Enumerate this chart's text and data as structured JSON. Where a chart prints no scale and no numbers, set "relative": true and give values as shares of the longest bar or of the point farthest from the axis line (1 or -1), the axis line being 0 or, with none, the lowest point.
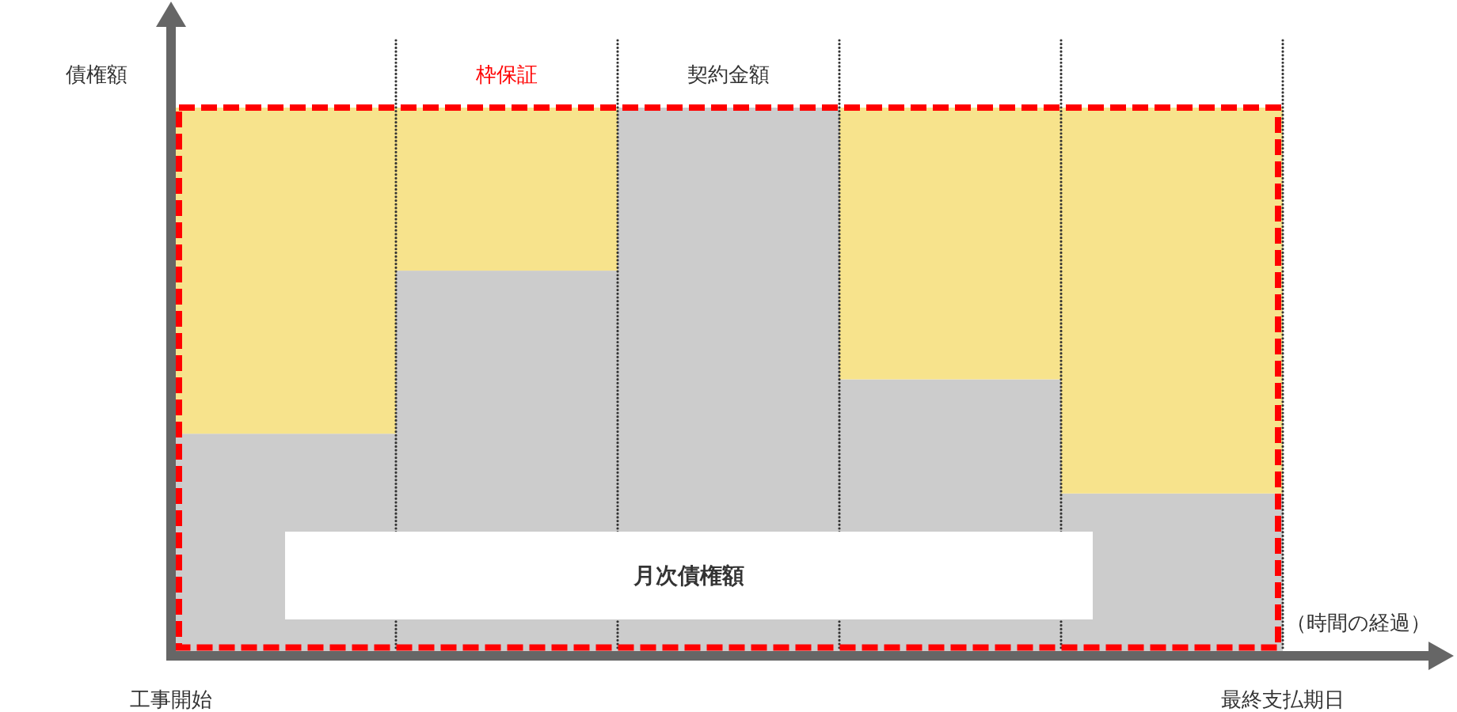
{
  "chart_data": {
    "type": "bar",
    "stacked": true,
    "relative": true,
    "categories": [
      null,
      null,
      null,
      null,
      null
    ],
    "series": [
      {
        "name": "月次債権額",
        "color": "#cccccc",
        "values": [
          0.4,
          0.7,
          1,
          0.5,
          0.29
        ]
      },
      {
        "color": "#f7e38c",
        "values": [
          0.6,
          0.3,
          0,
          0.5,
          0.71
        ]
      }
    ],
    "ylabel": "債権額",
    "xlabel": "（時間の経過）",
    "annotations": [
      "枠保証",
      {
        "text": "契約金額",
        "y": 1
      },
      "工事開始",
      "最終支払期日"
    ],
    "grid": "x"
  }
}
